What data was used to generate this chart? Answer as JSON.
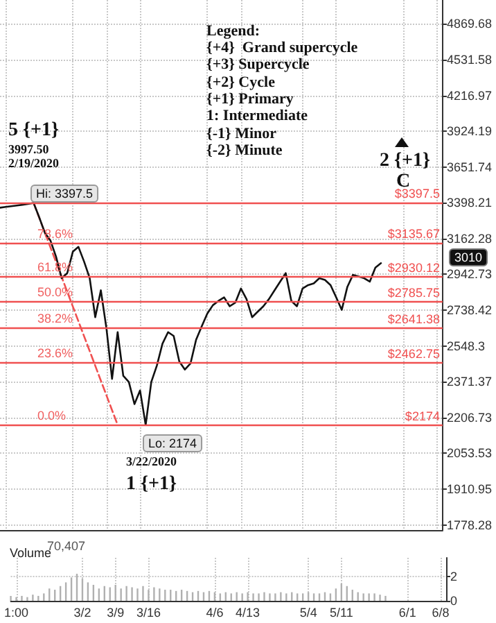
{
  "chart_data": [
    {
      "type": "line",
      "categories": [
        null,
        null,
        null,
        null,
        null,
        null,
        null,
        null,
        null,
        null,
        null,
        null,
        null,
        null,
        null,
        null,
        null,
        null,
        null,
        null,
        null,
        null,
        null,
        null,
        null,
        null,
        null,
        null,
        null,
        null,
        null,
        null,
        null,
        null,
        null,
        null,
        null,
        null,
        null,
        null,
        null,
        null,
        null,
        null,
        null,
        null,
        null,
        null,
        null,
        null,
        null,
        null,
        null,
        null,
        null,
        null,
        null,
        null,
        null,
        null,
        null,
        null,
        null,
        null,
        null,
        null,
        null,
        null,
        null,
        null,
        null,
        null,
        null,
        null,
        null,
        null,
        null,
        null,
        null,
        null
      ],
      "series": [
        {
          "color": "#111111",
          "values": [
            3365,
            3370,
            3375,
            3380,
            3385,
            3390,
            3397.5,
            3300,
            3200,
            3150,
            3050,
            2920,
            2950,
            3080,
            3110,
            3020,
            2922,
            2700,
            2850,
            2640,
            2385,
            2620,
            2400,
            2370,
            2267,
            2330,
            2174,
            2370,
            2450,
            2560,
            2620,
            2600,
            2470,
            2430,
            2460,
            2580,
            2650,
            2720,
            2766,
            2790,
            2810,
            2760,
            2780,
            2860,
            2800,
            2700,
            2730,
            2760,
            2800,
            2850,
            2900,
            2950,
            2790,
            2760,
            2860,
            2880,
            2890,
            2920,
            2910,
            2880,
            2810,
            2740,
            2870,
            2940,
            2930,
            2920,
            2900,
            2983,
            3010,
            null,
            null,
            null,
            null,
            null,
            null,
            null,
            null,
            null,
            null,
            null
          ]
        },
        {
          "color": "#f05050",
          "line_style": "dashed",
          "values": [
            null,
            null,
            null,
            null,
            null,
            null,
            3397.5,
            null,
            null,
            null,
            null,
            null,
            null,
            null,
            null,
            null,
            null,
            null,
            null,
            null,
            null,
            2174,
            null,
            null,
            null,
            null,
            null,
            null,
            null,
            null,
            null,
            null,
            null,
            null,
            null,
            null,
            null,
            null,
            null,
            null,
            null,
            null,
            null,
            null,
            null,
            null,
            null,
            null,
            null,
            null,
            null,
            null,
            null,
            null,
            null,
            null,
            null,
            null,
            null,
            null,
            null,
            null,
            null,
            null,
            null,
            null,
            null,
            null,
            null,
            null,
            null,
            null,
            null,
            null,
            null,
            null,
            null,
            null,
            null,
            null
          ]
        }
      ],
      "log": "y",
      "ylim": [
        1760,
        5108.91
      ],
      "yticks": [
        1778.28,
        1910.95,
        2053.53,
        2206.73,
        2371.37,
        2548.3,
        2738.42,
        2942.73,
        3162.28,
        3398.21,
        3651.74,
        3924.19,
        4216.97,
        4531.58,
        4869.68
      ],
      "grid": true,
      "tick_labels": "y",
      "ref_lines": [
        {
          "axis": "y",
          "value": 3397.5,
          "label": "$3397.5",
          "color": "#f05050"
        },
        {
          "axis": "y",
          "value": 3135.67,
          "label": "$3135.67",
          "color": "#f05050"
        },
        {
          "axis": "y",
          "value": 2930.12,
          "label": "$2930.12",
          "color": "#f05050"
        },
        {
          "axis": "y",
          "value": 2785.75,
          "label": "$2785.75",
          "color": "#f05050"
        },
        {
          "axis": "y",
          "value": 2641.38,
          "label": "$2641.38",
          "color": "#f05050"
        },
        {
          "axis": "y",
          "value": 2462.75,
          "label": "$2462.75",
          "color": "#f05050"
        },
        {
          "axis": "y",
          "value": 2174,
          "label": "$2174",
          "color": "#f05050"
        }
      ],
      "annotations": [
        "Legend:",
        "{+4}  Grand supercycle",
        "{+3} Supercycle",
        "{+2} Cycle",
        "{+1} Primary",
        "1: Intermediate",
        "{-1} Minor",
        "{-2} Minute",
        "5 {+1}",
        "3997.50",
        "2/19/2020",
        "Hi: 3397.5",
        "Lo: 2174",
        "3/22/2020",
        "1 {+1}",
        "2 {+1}",
        "C",
        "78.6%",
        "61.8%",
        "50.0%",
        "38.2%",
        "23.6%",
        "0.0%",
        "3010"
      ]
    },
    {
      "type": "bar",
      "title": "Volume",
      "categories": [
        null,
        "1:00",
        null,
        null,
        null,
        null,
        null,
        null,
        null,
        null,
        null,
        null,
        null,
        "3/2",
        null,
        null,
        null,
        null,
        null,
        "3/9",
        null,
        null,
        null,
        null,
        null,
        "3/16",
        null,
        null,
        null,
        null,
        null,
        null,
        null,
        null,
        null,
        null,
        null,
        "4/6",
        null,
        null,
        null,
        null,
        null,
        "4/13",
        null,
        null,
        null,
        null,
        null,
        null,
        null,
        null,
        null,
        null,
        "5/4",
        null,
        null,
        null,
        null,
        null,
        "5/11",
        null,
        null,
        null,
        null,
        null,
        null,
        null,
        null,
        null,
        null,
        null,
        "6/1",
        null,
        null,
        null,
        null,
        null,
        "6/8",
        null
      ],
      "values": [
        0.4,
        0.3,
        0.4,
        0.3,
        0.5,
        0.4,
        0.6,
        1.0,
        0.9,
        1.2,
        1.5,
        1.9,
        2.2,
        1.8,
        1.5,
        1.3,
        1.0,
        1.2,
        1.1,
        1.3,
        1.0,
        1.2,
        1.1,
        1.0,
        1.2,
        0.9,
        1.1,
        1.0,
        0.9,
        0.9,
        0.8,
        0.9,
        0.8,
        0.7,
        0.8,
        0.7,
        0.8,
        0.7,
        0.6,
        0.7,
        0.6,
        0.7,
        0.6,
        0.7,
        0.6,
        0.6,
        0.7,
        0.6,
        0.6,
        0.7,
        0.6,
        0.7,
        0.6,
        0.6,
        0.7,
        0.6,
        0.6,
        0.7,
        0.6,
        1.0,
        1.4,
        1.2,
        0.9,
        0.7,
        0.6,
        0.6,
        0.6,
        0.5,
        0.4,
        null,
        null,
        null,
        null,
        null,
        null,
        null,
        null,
        null,
        null,
        null
      ],
      "color": "#b0b0b0",
      "ylim": [
        0,
        3.5
      ],
      "yticks": [
        0,
        2
      ],
      "grid": true,
      "annotations": [
        "70,407"
      ]
    }
  ]
}
